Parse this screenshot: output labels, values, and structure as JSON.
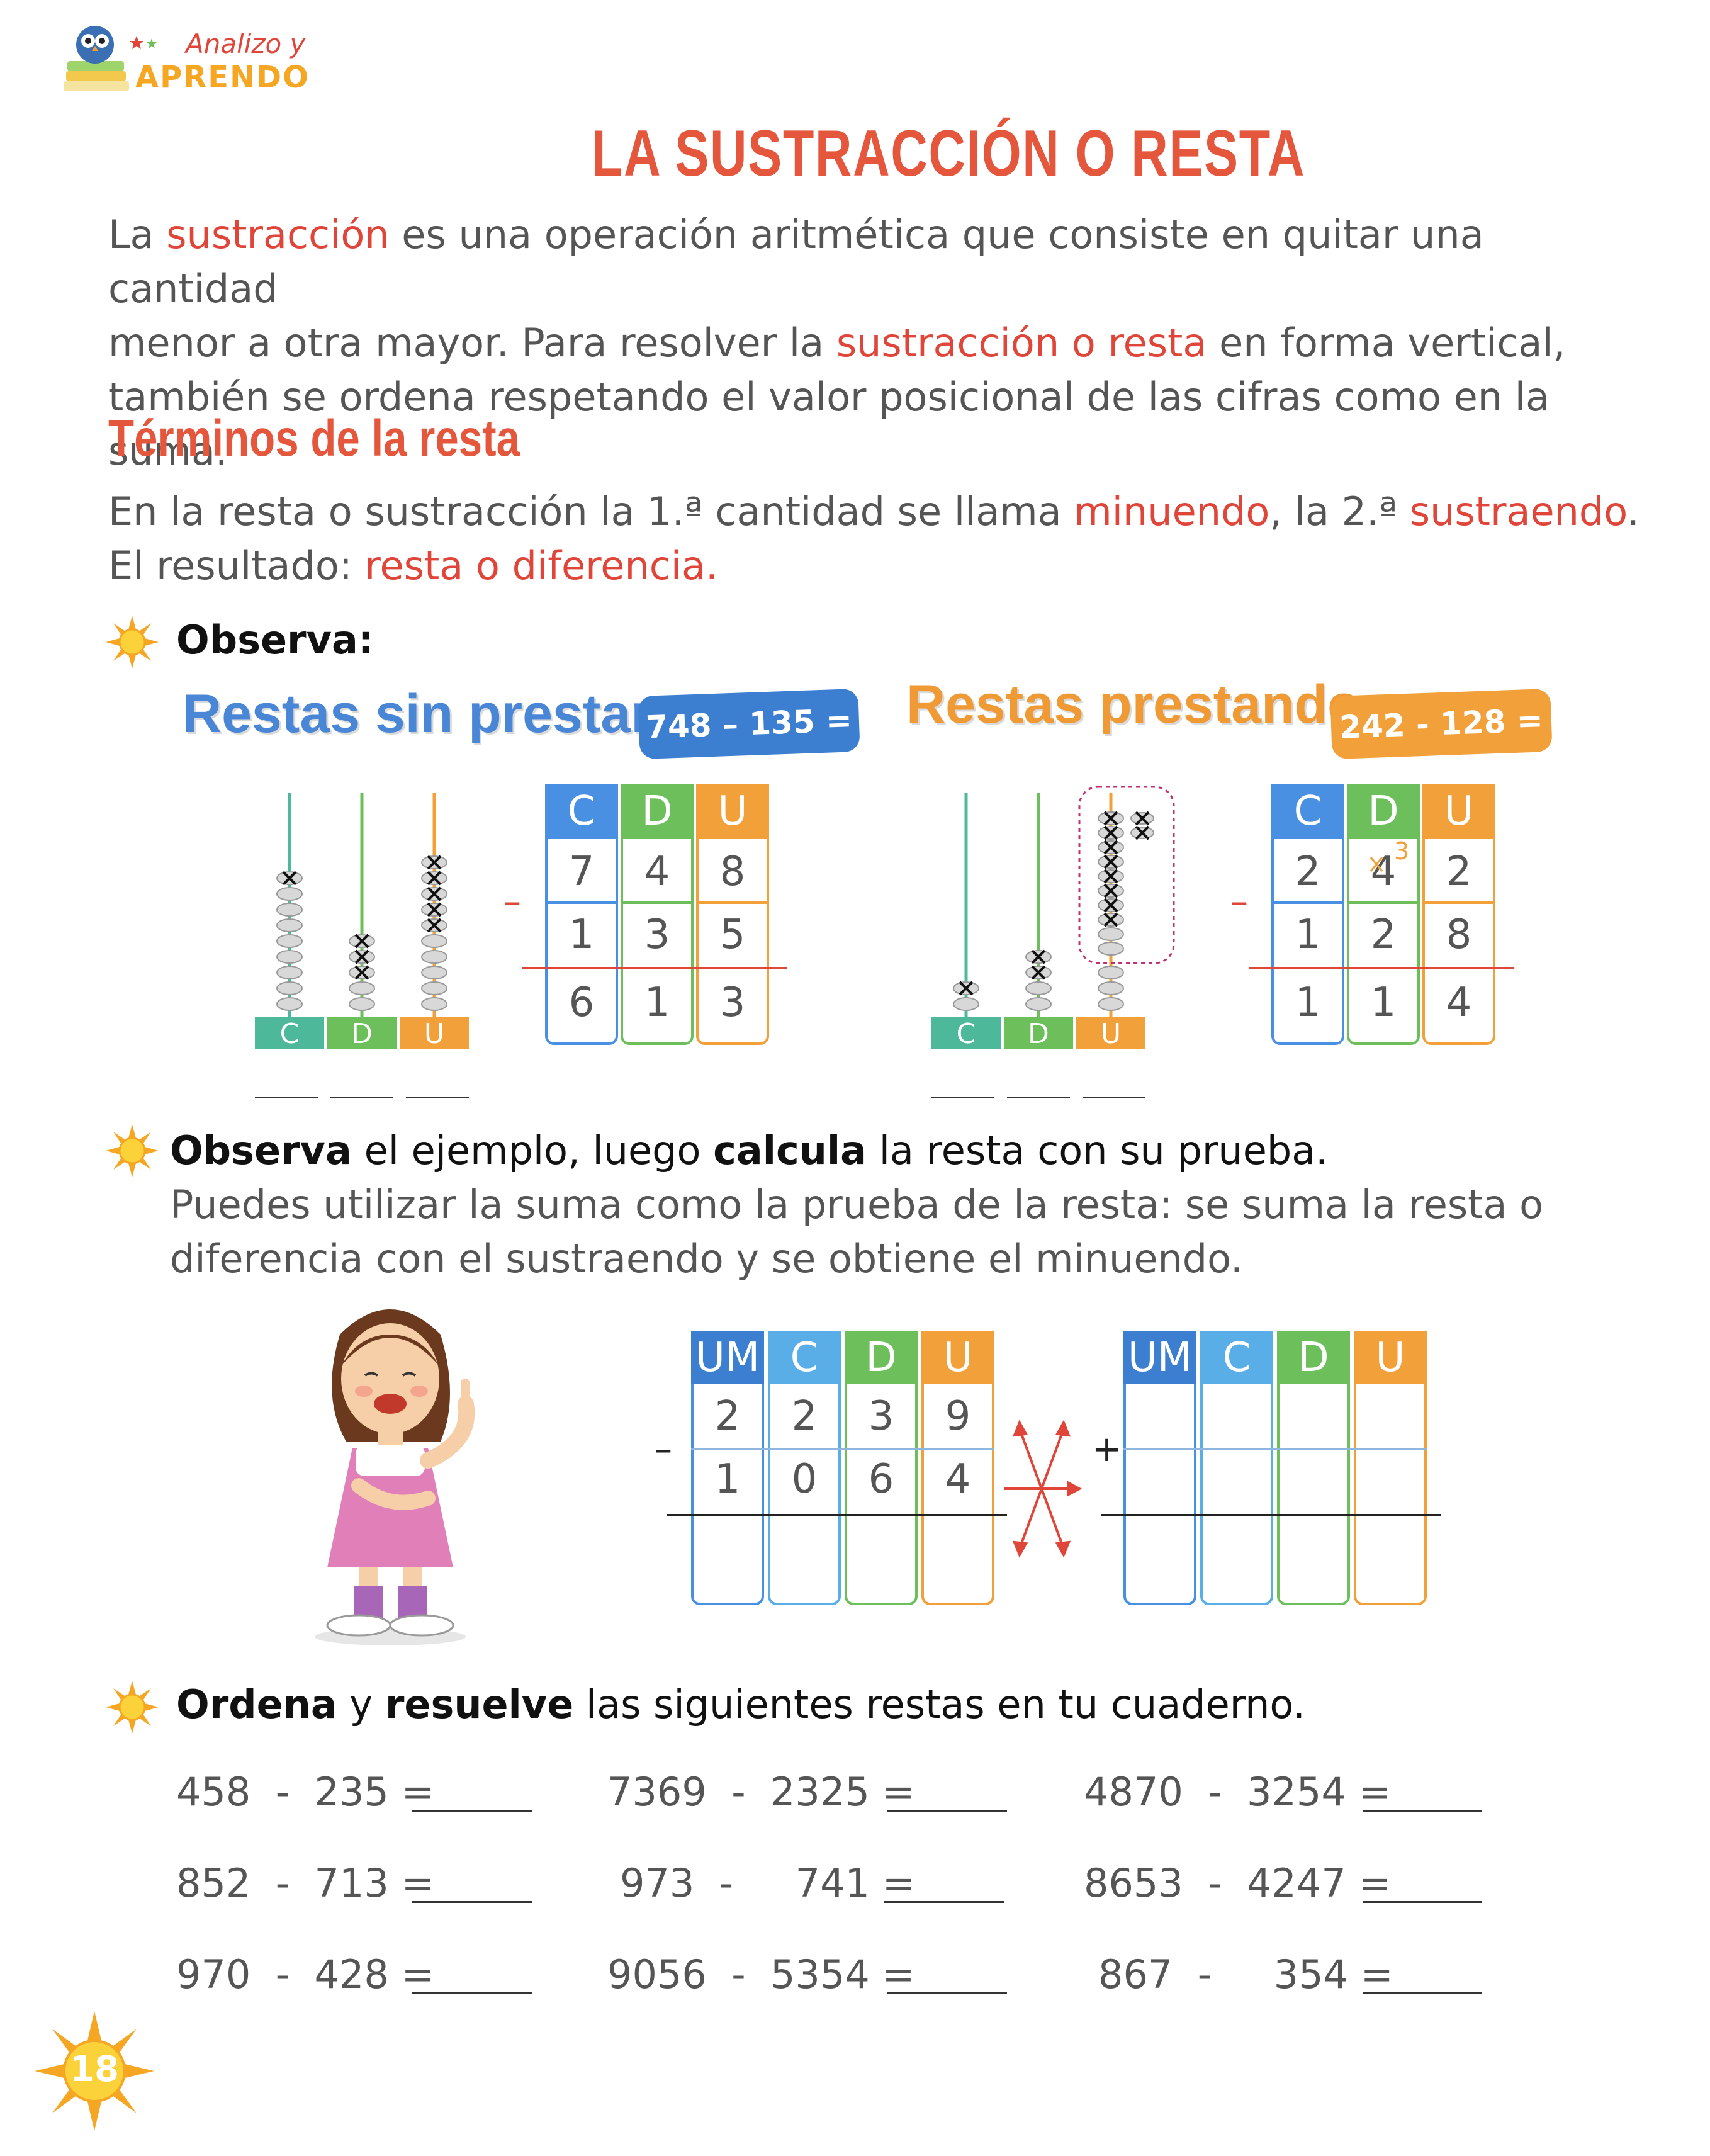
{
  "logo": {
    "line1": "Analizo y",
    "line2": "APRENDO"
  },
  "title": "LA SUSTRACCIÓN O RESTA",
  "intro": {
    "l1a": "La ",
    "l1b": "sustracción",
    "l1c": " es una operación aritmética que consiste en quitar una cantidad",
    "l2a": "menor a otra mayor. Para resolver la ",
    "l2b": "sustracción o resta",
    "l2c": " en forma vertical,",
    "l3": "también se ordena respetando el valor posicional de las cifras como en la suma."
  },
  "terms": {
    "heading": "Términos de la resta",
    "l1a": "En la resta o sustracción la 1.ª cantidad se llama ",
    "l1b": "minuendo",
    "l1c": ", la 2.ª ",
    "l1d": "sustraendo",
    "l1e": ".",
    "l2a": "El resultado: ",
    "l2b": "resta o diferencia."
  },
  "observe1": "Observa:",
  "sin_prestar": {
    "label": "Restas sin prestar",
    "badge": "748 – 135 =",
    "abacus_labels": [
      "C",
      "D",
      "U"
    ],
    "headers": [
      "C",
      "D",
      "U"
    ],
    "minuend": [
      "7",
      "4",
      "8"
    ],
    "subtrahend": [
      "1",
      "3",
      "5"
    ],
    "result": [
      "6",
      "1",
      "3"
    ],
    "minus": "–"
  },
  "prestando": {
    "label": "Restas prestando",
    "badge": "242 - 128 =",
    "abacus_labels": [
      "C",
      "D",
      "U"
    ],
    "headers": [
      "C",
      "D",
      "U"
    ],
    "minuend": [
      "2",
      "4",
      "2"
    ],
    "borrow": "3",
    "subtrahend": [
      "1",
      "2",
      "8"
    ],
    "result": [
      "1",
      "1",
      "4"
    ],
    "minus": "–"
  },
  "observe2": {
    "a": "Observa",
    "b": " el ejemplo, luego ",
    "c": "calcula",
    "d": " la resta con su prueba.",
    "l2": "Puedes utilizar la suma como la prueba de la resta: se suma la resta o",
    "l3": "diferencia con el sustraendo y se obtiene el minuendo."
  },
  "proof_left": {
    "headers": [
      "UM",
      "C",
      "D",
      "U"
    ],
    "row1": [
      "2",
      "2",
      "3",
      "9"
    ],
    "row2": [
      "1",
      "0",
      "6",
      "4"
    ],
    "minus": "–"
  },
  "proof_right": {
    "headers": [
      "UM",
      "C",
      "D",
      "U"
    ],
    "plus": "+"
  },
  "order": {
    "a": "Ordena",
    "b": " y ",
    "c": "resuelve",
    "d": " las siguientes restas en tu cuaderno."
  },
  "exercises": [
    "458  -  235 =",
    "7369  -  2325 =",
    "4870  -  3254 =",
    "852  -  713 =",
    "973  -     741 =",
    "8653  -  4247 =",
    "970  -  428 =",
    "9056  -  5354 =",
    "867  -     354 ="
  ],
  "page_number": "18",
  "colors": {
    "blue": "#4a90e2",
    "green": "#6cbf5a",
    "orange": "#f2a03a",
    "red": "#e0453a",
    "teal": "#4db89a"
  }
}
